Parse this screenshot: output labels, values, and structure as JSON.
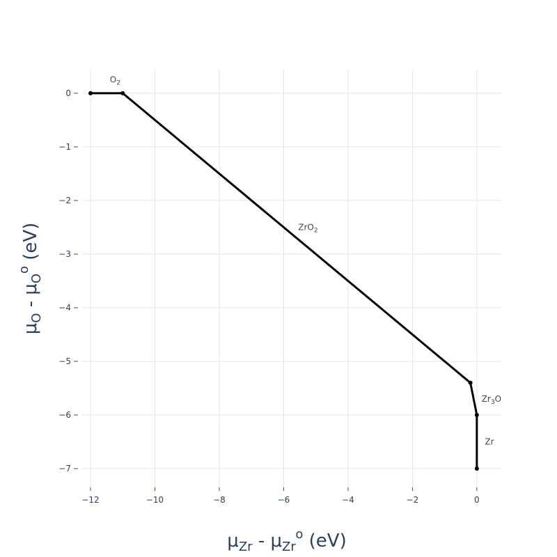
{
  "chart_data": {
    "type": "line",
    "x_label": [
      "μ",
      "Zr",
      " - μ",
      "Zr",
      "o",
      " (eV)"
    ],
    "y_label": [
      "μ",
      "O",
      " - μ",
      "O",
      "o",
      " (eV)"
    ],
    "series": [
      {
        "color": "#000000",
        "x": [
          -12,
          -11,
          -0.2,
          0,
          0
        ],
        "values": [
          0,
          0,
          -5.4,
          -6,
          -7
        ]
      }
    ],
    "annotations": [
      {
        "text": [
          "O",
          "2"
        ],
        "x": -11.4,
        "y": 0.25
      },
      {
        "text": [
          "ZrO",
          "2"
        ],
        "x": -5.55,
        "y": -2.5
      },
      {
        "text": [
          "Zr",
          "3",
          "O"
        ],
        "x": 0.15,
        "y": -5.7
      },
      {
        "text": [
          "Zr"
        ],
        "x": 0.25,
        "y": -6.5
      }
    ],
    "xlim": [
      -12.26,
      0.76
    ],
    "ylim": [
      -7.35,
      0.44
    ],
    "xticks": [
      {
        "value": -12,
        "label": "−12"
      },
      {
        "value": -10,
        "label": "−10"
      },
      {
        "value": -8,
        "label": "−8"
      },
      {
        "value": -6,
        "label": "−6"
      },
      {
        "value": -4,
        "label": "−4"
      },
      {
        "value": -2,
        "label": "−2"
      },
      0
    ],
    "yticks": [
      0,
      {
        "value": -1,
        "label": "−1"
      },
      {
        "value": -2,
        "label": "−2"
      },
      {
        "value": -3,
        "label": "−3"
      },
      {
        "value": -4,
        "label": "−4"
      },
      {
        "value": -5,
        "label": "−5"
      },
      {
        "value": -6,
        "label": "−6"
      },
      {
        "value": -7,
        "label": "−7"
      }
    ],
    "grid": true
  }
}
